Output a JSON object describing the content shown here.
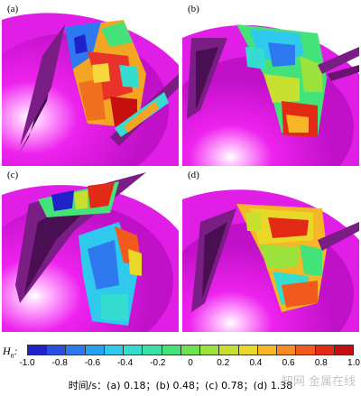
{
  "panels": [
    {
      "id": "a",
      "label": "(a)"
    },
    {
      "id": "b",
      "label": "(b)"
    },
    {
      "id": "c",
      "label": "(c)"
    },
    {
      "id": "d",
      "label": "(d)"
    }
  ],
  "colorbar": {
    "symbol": "H",
    "symbol_sub": "n",
    "symbol_suffix": ":",
    "colors": [
      "#1f22c8",
      "#2a4fe0",
      "#2e78f0",
      "#27a2f2",
      "#2ec9ec",
      "#35ddd1",
      "#3be2a8",
      "#44e37a",
      "#6ee34f",
      "#9be23c",
      "#c7e02f",
      "#e9d82a",
      "#f7b626",
      "#f88b22",
      "#f25a1d",
      "#e32a17",
      "#c80f10"
    ],
    "ticks": [
      "-1.0",
      "-0.8",
      "-0.6",
      "-0.4",
      "-0.2",
      "0",
      "0.2",
      "0.4",
      "0.6",
      "0.8",
      "1.0"
    ]
  },
  "caption": "时间/s：(a) 0.18；(b) 0.48；(c) 0.78；(d) 1.38",
  "watermark": "知网 金属在线",
  "styles": {
    "hub_color": "#ee22ee",
    "blade_dark": "#6a1370",
    "blade_shadow": "#3a0a40"
  }
}
